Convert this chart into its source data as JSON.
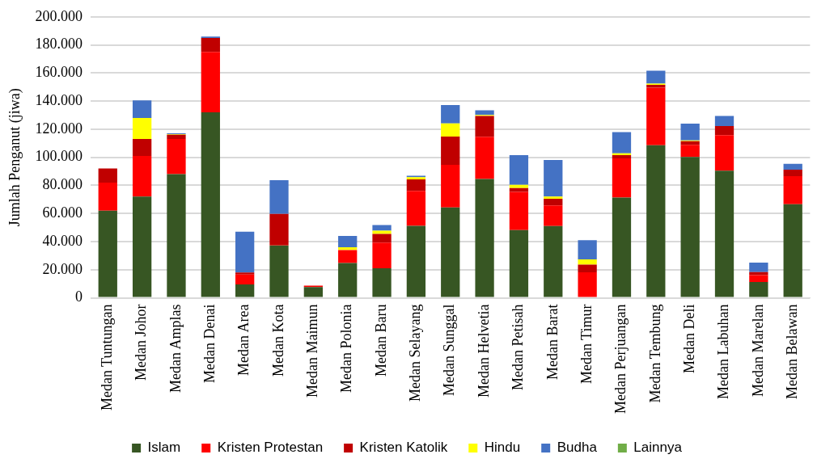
{
  "chart_data": {
    "type": "bar",
    "stacked": true,
    "ylabel": "Jumlah Penganut (jiwa)",
    "legend": "bottom",
    "grid": "y",
    "categories": [
      "Medan Tuntungan",
      "Medan Johor",
      "Medan Amplas",
      "Medan Denai",
      "Medan Area",
      "Medan Kota",
      "Medan Maimun",
      "Medan Polonia",
      "Medan Baru",
      "Medan Selayang",
      "Medan Sunggal",
      "Medan Helvetia",
      "Medan Petisah",
      "Medan Barat",
      "Medan Timur",
      "Medan Perjuangan",
      "Medan Tembung",
      "Medan Deli",
      "Medan Labuhan",
      "Medan Marelan",
      "Medan Belawan"
    ],
    "ylim": [
      0,
      200000
    ],
    "yticks": [
      {
        "value": 0,
        "label": "0"
      },
      {
        "value": 20000,
        "label": "20.000"
      },
      {
        "value": 40000,
        "label": "40.000"
      },
      {
        "value": 60000,
        "label": "60.000"
      },
      {
        "value": 80000,
        "label": "80.000"
      },
      {
        "value": 100000,
        "label": "100.000"
      },
      {
        "value": 120000,
        "label": "120.000"
      },
      {
        "value": 140000,
        "label": "140.000"
      },
      {
        "value": 160000,
        "label": "160.000"
      },
      {
        "value": 180000,
        "label": "180.000"
      },
      {
        "value": 200000,
        "label": "200.000"
      }
    ],
    "series": [
      {
        "name": "Islam",
        "color": "#375623",
        "values": [
          62000,
          72000,
          88000,
          132000,
          9500,
          37200,
          7700,
          24700,
          21000,
          51200,
          64300,
          84500,
          48200,
          51000,
          null,
          71400,
          108600,
          100200,
          90500,
          11200,
          66600
        ]
      },
      {
        "name": "Kristen Protestan",
        "color": "#ff0000",
        "values": [
          20000,
          29000,
          25000,
          43000,
          7000,
          500,
          1000,
          9300,
          18300,
          24900,
          30300,
          30100,
          27100,
          14800,
          18200,
          27800,
          40900,
          8600,
          25200,
          4900,
          20000
        ]
      },
      {
        "name": "Kristen Katolik",
        "color": "#c00000",
        "values": [
          10000,
          12000,
          3000,
          10000,
          1500,
          22000,
          0,
          null,
          6100,
          8200,
          20200,
          14900,
          2800,
          4700,
          5400,
          2300,
          2100,
          2600,
          6500,
          2200,
          4600
        ]
      },
      {
        "name": "Hindu",
        "color": "#ffff00",
        "values": [
          0,
          15000,
          500,
          0,
          null,
          0,
          0,
          2000,
          2300,
          1500,
          9300,
          600,
          2300,
          1600,
          3800,
          1300,
          900,
          600,
          0,
          0,
          0
        ]
      },
      {
        "name": "Budha",
        "color": "#4472c4",
        "values": [
          0,
          12500,
          500,
          1000,
          29000,
          24000,
          0,
          8000,
          4100,
          1100,
          13100,
          3400,
          21100,
          26000,
          13600,
          15100,
          9200,
          11900,
          7300,
          6700,
          4100
        ]
      },
      {
        "name": "Lainnya",
        "color": "#70ad47",
        "values": [
          0,
          0,
          0,
          0,
          0,
          0,
          0,
          0,
          0,
          0,
          0,
          0,
          0,
          0,
          0,
          0,
          0,
          0,
          0,
          0,
          0
        ]
      }
    ]
  }
}
